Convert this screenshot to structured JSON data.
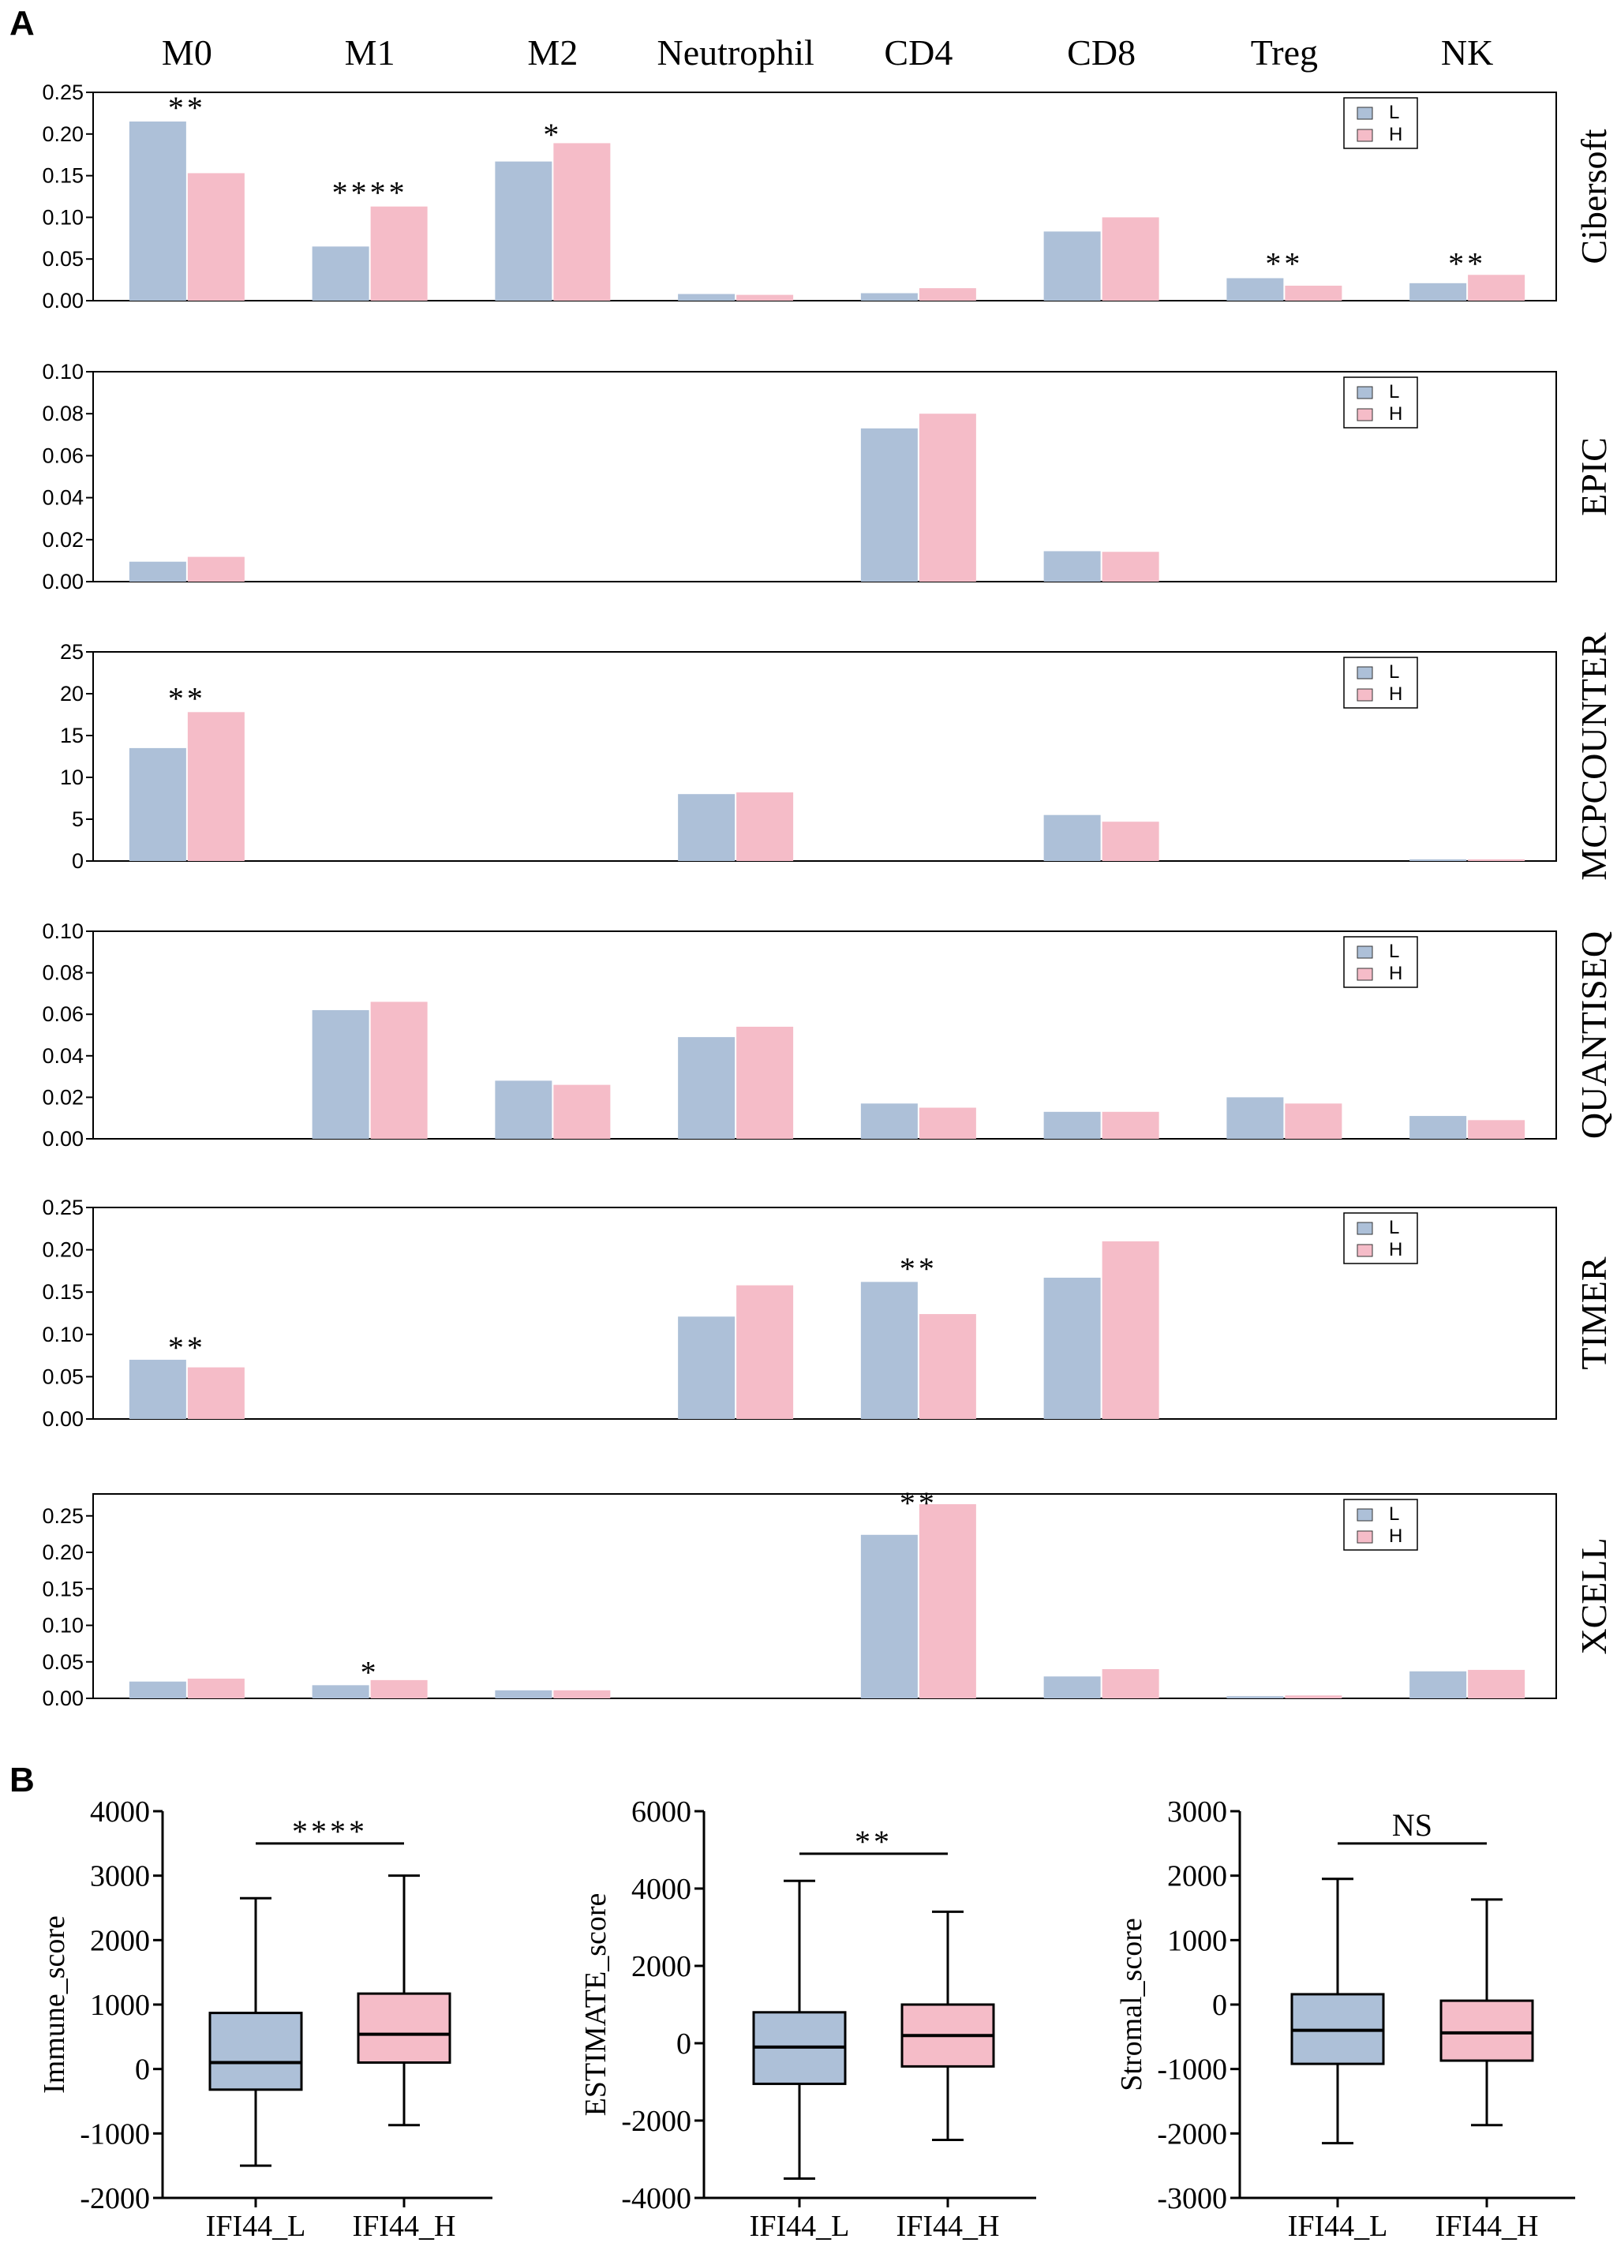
{
  "panel_labels": {
    "a": "A",
    "b": "B"
  },
  "colors": {
    "L": "#adc0d8",
    "H": "#f5bcc8",
    "axis": "#000000"
  },
  "chart_data": [
    {
      "type": "bar",
      "panel": "A",
      "method": "Cibersoft",
      "categories": [
        "M0",
        "M1",
        "M2",
        "Neutrophil",
        "CD4",
        "CD8",
        "Treg",
        "NK"
      ],
      "series": [
        {
          "name": "L",
          "values": [
            0.215,
            0.065,
            0.167,
            0.008,
            0.009,
            0.083,
            0.027,
            0.021
          ]
        },
        {
          "name": "H",
          "values": [
            0.153,
            0.113,
            0.189,
            0.007,
            0.015,
            0.1,
            0.018,
            0.031
          ]
        }
      ],
      "ylim": [
        0,
        0.25
      ],
      "yticks": [
        0,
        0.05,
        0.1,
        0.15,
        0.2,
        0.25
      ],
      "ytick_labels": [
        "0.00",
        "0.05",
        "0.10",
        "0.15",
        "0.20",
        "0.25"
      ],
      "significance": [
        {
          "category": "M0",
          "label": "**",
          "y": 0.232
        },
        {
          "category": "M1",
          "label": "****",
          "y": 0.13
        },
        {
          "category": "M2",
          "label": "*",
          "y": 0.2
        },
        {
          "category": "Treg",
          "label": "**",
          "y": 0.045
        },
        {
          "category": "NK",
          "label": "**",
          "y": 0.045
        }
      ],
      "legend": [
        "L",
        "H"
      ]
    },
    {
      "type": "bar",
      "panel": "A",
      "method": "EPIC",
      "categories": [
        "M0",
        "M1",
        "M2",
        "Neutrophil",
        "CD4",
        "CD8",
        "Treg",
        "NK"
      ],
      "series": [
        {
          "name": "L",
          "values": [
            0.0095,
            0,
            0,
            0,
            0.073,
            0.0145,
            0,
            0
          ]
        },
        {
          "name": "H",
          "values": [
            0.0118,
            0,
            0,
            0,
            0.08,
            0.0142,
            0,
            0
          ]
        }
      ],
      "ylim": [
        0,
        0.1
      ],
      "yticks": [
        0,
        0.02,
        0.04,
        0.06,
        0.08,
        0.1
      ],
      "ytick_labels": [
        "0.00",
        "0.02",
        "0.04",
        "0.06",
        "0.08",
        "0.10"
      ],
      "significance": [],
      "legend": [
        "L",
        "H"
      ]
    },
    {
      "type": "bar",
      "panel": "A",
      "method": "MCPCOUNTER",
      "categories": [
        "M0",
        "M1",
        "M2",
        "Neutrophil",
        "CD4",
        "CD8",
        "Treg",
        "NK"
      ],
      "series": [
        {
          "name": "L",
          "values": [
            13.5,
            0,
            0,
            8.0,
            0,
            5.5,
            0,
            0.2
          ]
        },
        {
          "name": "H",
          "values": [
            17.8,
            0,
            0,
            8.2,
            0,
            4.7,
            0,
            0.2
          ]
        }
      ],
      "ylim": [
        0,
        25
      ],
      "yticks": [
        0,
        5,
        10,
        15,
        20,
        25
      ],
      "ytick_labels": [
        "0",
        "5",
        "10",
        "15",
        "20",
        "25"
      ],
      "significance": [
        {
          "category": "M0",
          "label": "**",
          "y": 19.5
        }
      ],
      "legend": [
        "L",
        "H"
      ]
    },
    {
      "type": "bar",
      "panel": "A",
      "method": "QUANTISEQ",
      "categories": [
        "M0",
        "M1",
        "M2",
        "Neutrophil",
        "CD4",
        "CD8",
        "Treg",
        "NK"
      ],
      "series": [
        {
          "name": "L",
          "values": [
            0,
            0.062,
            0.028,
            0.049,
            0.017,
            0.013,
            0.02,
            0.011
          ]
        },
        {
          "name": "H",
          "values": [
            0,
            0.066,
            0.026,
            0.054,
            0.015,
            0.013,
            0.017,
            0.009
          ]
        }
      ],
      "ylim": [
        0,
        0.1
      ],
      "yticks": [
        0,
        0.02,
        0.04,
        0.06,
        0.08,
        0.1
      ],
      "ytick_labels": [
        "0.00",
        "0.02",
        "0.04",
        "0.06",
        "0.08",
        "0.10"
      ],
      "significance": [],
      "legend": [
        "L",
        "H"
      ]
    },
    {
      "type": "bar",
      "panel": "A",
      "method": "TIMER",
      "categories": [
        "M0",
        "M1",
        "M2",
        "Neutrophil",
        "CD4",
        "CD8",
        "Treg",
        "NK"
      ],
      "series": [
        {
          "name": "L",
          "values": [
            0.07,
            0,
            0,
            0.121,
            0.162,
            0.167,
            0,
            0
          ]
        },
        {
          "name": "H",
          "values": [
            0.061,
            0,
            0,
            0.158,
            0.124,
            0.21,
            0,
            0
          ]
        }
      ],
      "ylim": [
        0,
        0.25
      ],
      "yticks": [
        0,
        0.05,
        0.1,
        0.15,
        0.2,
        0.25
      ],
      "ytick_labels": [
        "0.00",
        "0.05",
        "0.10",
        "0.15",
        "0.20",
        "0.25"
      ],
      "significance": [
        {
          "category": "M0",
          "label": "**",
          "y": 0.085
        },
        {
          "category": "CD4",
          "label": "**",
          "y": 0.178
        }
      ],
      "legend": [
        "L",
        "H"
      ]
    },
    {
      "type": "bar",
      "panel": "A",
      "method": "XCELL",
      "categories": [
        "M0",
        "M1",
        "M2",
        "Neutrophil",
        "CD4",
        "CD8",
        "Treg",
        "NK"
      ],
      "series": [
        {
          "name": "L",
          "values": [
            0.023,
            0.018,
            0.011,
            0,
            0.224,
            0.03,
            0.003,
            0.037
          ]
        },
        {
          "name": "H",
          "values": [
            0.027,
            0.025,
            0.011,
            0,
            0.266,
            0.04,
            0.004,
            0.039
          ]
        }
      ],
      "ylim": [
        0,
        0.28
      ],
      "yticks": [
        0,
        0.05,
        0.1,
        0.15,
        0.2,
        0.25
      ],
      "ytick_labels": [
        "0.00",
        "0.05",
        "0.10",
        "0.15",
        "0.20",
        "0.25"
      ],
      "significance": [
        {
          "category": "M1",
          "label": "*",
          "y": 0.036
        },
        {
          "category": "CD4",
          "label": "**",
          "y": 0.268
        }
      ],
      "legend": [
        "L",
        "H"
      ]
    },
    {
      "type": "box",
      "panel": "B",
      "ylabel": "Immune_score",
      "categories": [
        "IFI44_L",
        "IFI44_H"
      ],
      "boxes": [
        {
          "name": "IFI44_L",
          "min": -1500,
          "q1": -320,
          "median": 100,
          "q3": 870,
          "max": 2650
        },
        {
          "name": "IFI44_H",
          "min": -870,
          "q1": 100,
          "median": 540,
          "q3": 1170,
          "max": 3000
        }
      ],
      "ylim": [
        -2000,
        4000
      ],
      "yticks": [
        -2000,
        -1000,
        0,
        1000,
        2000,
        3000,
        4000
      ],
      "ytick_labels": [
        "-2000",
        "-1000",
        "0",
        "1000",
        "2000",
        "3000",
        "4000"
      ],
      "significance": {
        "label": "****",
        "y": 3500
      }
    },
    {
      "type": "box",
      "panel": "B",
      "ylabel": "ESTIMATE_score",
      "categories": [
        "IFI44_L",
        "IFI44_H"
      ],
      "boxes": [
        {
          "name": "IFI44_L",
          "min": -3500,
          "q1": -1050,
          "median": -100,
          "q3": 800,
          "max": 4200
        },
        {
          "name": "IFI44_H",
          "min": -2500,
          "q1": -600,
          "median": 200,
          "q3": 1000,
          "max": 3400
        }
      ],
      "ylim": [
        -4000,
        6000
      ],
      "yticks": [
        -4000,
        -2000,
        0,
        2000,
        4000,
        6000
      ],
      "ytick_labels": [
        "-4000",
        "-2000",
        "0",
        "2000",
        "4000",
        "6000"
      ],
      "significance": {
        "label": "**",
        "y": 4900
      }
    },
    {
      "type": "box",
      "panel": "B",
      "ylabel": "Stromal_score",
      "categories": [
        "IFI44_L",
        "IFI44_H"
      ],
      "boxes": [
        {
          "name": "IFI44_L",
          "min": -2150,
          "q1": -920,
          "median": -400,
          "q3": 160,
          "max": 1950
        },
        {
          "name": "IFI44_H",
          "min": -1870,
          "q1": -870,
          "median": -440,
          "q3": 60,
          "max": 1630
        }
      ],
      "ylim": [
        -3000,
        3000
      ],
      "yticks": [
        -3000,
        -2000,
        -1000,
        0,
        1000,
        2000,
        3000
      ],
      "ytick_labels": [
        "-3000",
        "-2000",
        "-1000",
        "0",
        "1000",
        "2000",
        "3000"
      ],
      "significance": {
        "label": "NS",
        "y": 2500
      }
    }
  ]
}
